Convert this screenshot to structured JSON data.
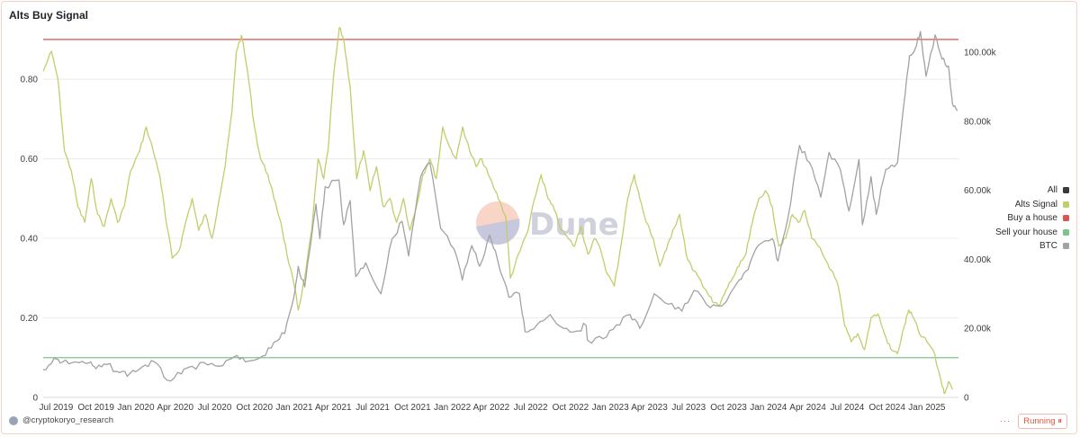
{
  "title": "Alts Buy Signal",
  "watermark": "Dune",
  "footer": {
    "author": "@cryptokoryo_research",
    "status": "Running",
    "dots": "···"
  },
  "colors": {
    "alts": "#c3cd6b",
    "btc": "#a2a2a2",
    "buy": "#d9534f",
    "sell": "#7cc48a",
    "all": "#3a3a3a"
  },
  "chart_data": {
    "type": "line",
    "title": "Alts Buy Signal",
    "x_ticks": [
      "Jul 2019",
      "Oct 2019",
      "Jan 2020",
      "Apr 2020",
      "Jul 2020",
      "Oct 2020",
      "Jan 2021",
      "Apr 2021",
      "Jul 2021",
      "Oct 2021",
      "Jan 2022",
      "Apr 2022",
      "Jul 2022",
      "Oct 2022",
      "Jan 2023",
      "Apr 2023",
      "Jul 2023",
      "Oct 2023",
      "Jan 2024",
      "Apr 2024",
      "Jul 2024",
      "Oct 2024",
      "Jan 2025"
    ],
    "x_range": [
      "2019-06-01",
      "2025-03-15"
    ],
    "y_left": {
      "ticks": [
        "0",
        "0.20",
        "0.40",
        "0.60",
        "0.80"
      ],
      "range": [
        0,
        0.92
      ]
    },
    "y_right": {
      "ticks": [
        "0",
        "20.00k",
        "40.00k",
        "60.00k",
        "80.00k",
        "100.00k"
      ],
      "range": [
        0,
        106000
      ]
    },
    "legend": [
      "All",
      "Alts Signal",
      "Buy a house",
      "Sell your house",
      "BTC"
    ],
    "series": [
      {
        "name": "Alts Signal",
        "axis": "left",
        "points": [
          [
            "2019-06-01",
            0.82
          ],
          [
            "2019-06-20",
            0.87
          ],
          [
            "2019-07-05",
            0.8
          ],
          [
            "2019-07-20",
            0.62
          ],
          [
            "2019-08-05",
            0.57
          ],
          [
            "2019-08-20",
            0.48
          ],
          [
            "2019-09-05",
            0.44
          ],
          [
            "2019-09-20",
            0.55
          ],
          [
            "2019-10-05",
            0.46
          ],
          [
            "2019-10-20",
            0.43
          ],
          [
            "2019-11-05",
            0.5
          ],
          [
            "2019-11-20",
            0.44
          ],
          [
            "2019-12-05",
            0.48
          ],
          [
            "2019-12-20",
            0.57
          ],
          [
            "2020-01-10",
            0.62
          ],
          [
            "2020-01-25",
            0.68
          ],
          [
            "2020-02-10",
            0.62
          ],
          [
            "2020-02-25",
            0.56
          ],
          [
            "2020-03-10",
            0.45
          ],
          [
            "2020-03-25",
            0.35
          ],
          [
            "2020-04-10",
            0.37
          ],
          [
            "2020-04-25",
            0.44
          ],
          [
            "2020-05-10",
            0.5
          ],
          [
            "2020-05-25",
            0.42
          ],
          [
            "2020-06-10",
            0.46
          ],
          [
            "2020-06-25",
            0.4
          ],
          [
            "2020-07-10",
            0.49
          ],
          [
            "2020-07-25",
            0.58
          ],
          [
            "2020-08-10",
            0.72
          ],
          [
            "2020-08-20",
            0.87
          ],
          [
            "2020-09-01",
            0.91
          ],
          [
            "2020-09-15",
            0.82
          ],
          [
            "2020-10-01",
            0.68
          ],
          [
            "2020-10-15",
            0.6
          ],
          [
            "2020-11-01",
            0.56
          ],
          [
            "2020-11-15",
            0.5
          ],
          [
            "2020-12-01",
            0.44
          ],
          [
            "2020-12-15",
            0.36
          ],
          [
            "2021-01-01",
            0.28
          ],
          [
            "2021-01-10",
            0.22
          ],
          [
            "2021-01-25",
            0.3
          ],
          [
            "2021-02-10",
            0.42
          ],
          [
            "2021-02-25",
            0.6
          ],
          [
            "2021-03-10",
            0.55
          ],
          [
            "2021-03-20",
            0.62
          ],
          [
            "2021-04-01",
            0.8
          ],
          [
            "2021-04-15",
            0.93
          ],
          [
            "2021-04-25",
            0.9
          ],
          [
            "2021-05-10",
            0.78
          ],
          [
            "2021-05-25",
            0.55
          ],
          [
            "2021-06-10",
            0.62
          ],
          [
            "2021-06-25",
            0.52
          ],
          [
            "2021-07-10",
            0.58
          ],
          [
            "2021-07-25",
            0.48
          ],
          [
            "2021-08-10",
            0.5
          ],
          [
            "2021-08-25",
            0.44
          ],
          [
            "2021-09-10",
            0.5
          ],
          [
            "2021-09-25",
            0.42
          ],
          [
            "2021-10-10",
            0.48
          ],
          [
            "2021-10-25",
            0.56
          ],
          [
            "2021-11-10",
            0.6
          ],
          [
            "2021-11-25",
            0.55
          ],
          [
            "2021-12-10",
            0.68
          ],
          [
            "2021-12-25",
            0.63
          ],
          [
            "2022-01-10",
            0.6
          ],
          [
            "2022-01-25",
            0.68
          ],
          [
            "2022-02-10",
            0.62
          ],
          [
            "2022-02-25",
            0.58
          ],
          [
            "2022-03-10",
            0.6
          ],
          [
            "2022-03-25",
            0.56
          ],
          [
            "2022-04-10",
            0.52
          ],
          [
            "2022-04-25",
            0.48
          ],
          [
            "2022-05-05",
            0.45
          ],
          [
            "2022-05-15",
            0.3
          ],
          [
            "2022-05-25",
            0.33
          ],
          [
            "2022-06-10",
            0.38
          ],
          [
            "2022-06-25",
            0.42
          ],
          [
            "2022-07-10",
            0.5
          ],
          [
            "2022-07-25",
            0.56
          ],
          [
            "2022-08-10",
            0.5
          ],
          [
            "2022-08-25",
            0.47
          ],
          [
            "2022-09-10",
            0.42
          ],
          [
            "2022-09-25",
            0.4
          ],
          [
            "2022-10-10",
            0.38
          ],
          [
            "2022-10-25",
            0.43
          ],
          [
            "2022-11-10",
            0.36
          ],
          [
            "2022-11-25",
            0.4
          ],
          [
            "2022-12-10",
            0.37
          ],
          [
            "2022-12-25",
            0.31
          ],
          [
            "2023-01-10",
            0.28
          ],
          [
            "2023-01-25",
            0.38
          ],
          [
            "2023-02-10",
            0.5
          ],
          [
            "2023-02-25",
            0.56
          ],
          [
            "2023-03-10",
            0.5
          ],
          [
            "2023-03-25",
            0.44
          ],
          [
            "2023-04-10",
            0.4
          ],
          [
            "2023-04-25",
            0.33
          ],
          [
            "2023-05-10",
            0.37
          ],
          [
            "2023-05-25",
            0.42
          ],
          [
            "2023-06-10",
            0.46
          ],
          [
            "2023-06-25",
            0.36
          ],
          [
            "2023-07-10",
            0.32
          ],
          [
            "2023-07-25",
            0.3
          ],
          [
            "2023-08-10",
            0.27
          ],
          [
            "2023-08-25",
            0.24
          ],
          [
            "2023-09-10",
            0.23
          ],
          [
            "2023-09-25",
            0.27
          ],
          [
            "2023-10-10",
            0.3
          ],
          [
            "2023-10-25",
            0.33
          ],
          [
            "2023-11-10",
            0.36
          ],
          [
            "2023-11-25",
            0.44
          ],
          [
            "2023-12-10",
            0.5
          ],
          [
            "2023-12-25",
            0.52
          ],
          [
            "2024-01-10",
            0.48
          ],
          [
            "2024-01-25",
            0.38
          ],
          [
            "2024-02-10",
            0.4
          ],
          [
            "2024-02-25",
            0.46
          ],
          [
            "2024-03-10",
            0.44
          ],
          [
            "2024-03-25",
            0.47
          ],
          [
            "2024-04-10",
            0.4
          ],
          [
            "2024-04-25",
            0.38
          ],
          [
            "2024-05-10",
            0.35
          ],
          [
            "2024-05-25",
            0.32
          ],
          [
            "2024-06-10",
            0.28
          ],
          [
            "2024-06-25",
            0.18
          ],
          [
            "2024-07-10",
            0.14
          ],
          [
            "2024-07-25",
            0.16
          ],
          [
            "2024-08-10",
            0.12
          ],
          [
            "2024-08-25",
            0.2
          ],
          [
            "2024-09-10",
            0.21
          ],
          [
            "2024-09-25",
            0.16
          ],
          [
            "2024-10-10",
            0.12
          ],
          [
            "2024-10-25",
            0.11
          ],
          [
            "2024-11-10",
            0.18
          ],
          [
            "2024-11-20",
            0.22
          ],
          [
            "2024-12-01",
            0.2
          ],
          [
            "2024-12-15",
            0.16
          ],
          [
            "2025-01-01",
            0.14
          ],
          [
            "2025-01-15",
            0.12
          ],
          [
            "2025-02-01",
            0.05
          ],
          [
            "2025-02-10",
            0.01
          ],
          [
            "2025-02-20",
            0.04
          ],
          [
            "2025-03-01",
            0.02
          ]
        ]
      },
      {
        "name": "BTC",
        "axis": "right",
        "points": [
          [
            "2019-06-01",
            8000
          ],
          [
            "2019-06-26",
            11300
          ],
          [
            "2019-07-15",
            10200
          ],
          [
            "2019-08-15",
            10300
          ],
          [
            "2019-09-15",
            10000
          ],
          [
            "2019-10-01",
            8300
          ],
          [
            "2019-10-26",
            9500
          ],
          [
            "2019-11-25",
            7200
          ],
          [
            "2019-12-18",
            6900
          ],
          [
            "2020-01-15",
            8800
          ],
          [
            "2020-02-13",
            10300
          ],
          [
            "2020-03-13",
            5000
          ],
          [
            "2020-04-15",
            6800
          ],
          [
            "2020-05-10",
            9000
          ],
          [
            "2020-06-15",
            9400
          ],
          [
            "2020-07-20",
            9200
          ],
          [
            "2020-08-15",
            11800
          ],
          [
            "2020-09-10",
            10300
          ],
          [
            "2020-10-20",
            12000
          ],
          [
            "2020-11-15",
            16000
          ],
          [
            "2020-12-10",
            18500
          ],
          [
            "2020-12-31",
            29000
          ],
          [
            "2021-01-10",
            38000
          ],
          [
            "2021-01-25",
            32000
          ],
          [
            "2021-02-20",
            56000
          ],
          [
            "2021-03-01",
            46000
          ],
          [
            "2021-03-13",
            61000
          ],
          [
            "2021-04-14",
            63000
          ],
          [
            "2021-04-25",
            50000
          ],
          [
            "2021-05-10",
            57000
          ],
          [
            "2021-05-23",
            35000
          ],
          [
            "2021-06-15",
            39000
          ],
          [
            "2021-07-20",
            30000
          ],
          [
            "2021-08-15",
            46000
          ],
          [
            "2021-09-07",
            51000
          ],
          [
            "2021-09-22",
            41000
          ],
          [
            "2021-10-20",
            64000
          ],
          [
            "2021-11-10",
            68000
          ],
          [
            "2021-12-05",
            49000
          ],
          [
            "2022-01-05",
            43000
          ],
          [
            "2022-01-24",
            34000
          ],
          [
            "2022-02-15",
            44000
          ],
          [
            "2022-03-05",
            38000
          ],
          [
            "2022-03-28",
            47000
          ],
          [
            "2022-04-15",
            40000
          ],
          [
            "2022-05-12",
            29000
          ],
          [
            "2022-06-05",
            30000
          ],
          [
            "2022-06-18",
            19000
          ],
          [
            "2022-07-15",
            21000
          ],
          [
            "2022-08-15",
            24000
          ],
          [
            "2022-09-15",
            20000
          ],
          [
            "2022-10-15",
            19200
          ],
          [
            "2022-11-05",
            21000
          ],
          [
            "2022-11-10",
            16500
          ],
          [
            "2022-12-15",
            17000
          ],
          [
            "2023-01-15",
            21000
          ],
          [
            "2023-02-15",
            24000
          ],
          [
            "2023-03-10",
            20000
          ],
          [
            "2023-04-12",
            30000
          ],
          [
            "2023-05-15",
            27000
          ],
          [
            "2023-06-15",
            25000
          ],
          [
            "2023-07-13",
            31000
          ],
          [
            "2023-08-20",
            26000
          ],
          [
            "2023-09-15",
            26500
          ],
          [
            "2023-10-25",
            34000
          ],
          [
            "2023-11-15",
            37000
          ],
          [
            "2023-12-08",
            44000
          ],
          [
            "2024-01-10",
            46000
          ],
          [
            "2024-01-23",
            39500
          ],
          [
            "2024-02-15",
            52000
          ],
          [
            "2024-03-13",
            73000
          ],
          [
            "2024-04-05",
            68000
          ],
          [
            "2024-05-01",
            58000
          ],
          [
            "2024-05-20",
            71000
          ],
          [
            "2024-06-15",
            66000
          ],
          [
            "2024-07-05",
            54000
          ],
          [
            "2024-07-28",
            69000
          ],
          [
            "2024-08-05",
            50000
          ],
          [
            "2024-08-25",
            64000
          ],
          [
            "2024-09-06",
            53000
          ],
          [
            "2024-09-28",
            66000
          ],
          [
            "2024-10-25",
            68000
          ],
          [
            "2024-11-12",
            88000
          ],
          [
            "2024-11-22",
            99000
          ],
          [
            "2024-12-05",
            101000
          ],
          [
            "2024-12-17",
            106000
          ],
          [
            "2024-12-30",
            93000
          ],
          [
            "2025-01-20",
            105000
          ],
          [
            "2025-02-05",
            98000
          ],
          [
            "2025-02-20",
            96000
          ],
          [
            "2025-03-01",
            85000
          ],
          [
            "2025-03-12",
            83000
          ]
        ]
      }
    ],
    "reference_lines": [
      {
        "name": "Buy a house",
        "axis": "left",
        "value": 0.9
      },
      {
        "name": "Sell your house",
        "axis": "left",
        "value": 0.1
      }
    ]
  }
}
